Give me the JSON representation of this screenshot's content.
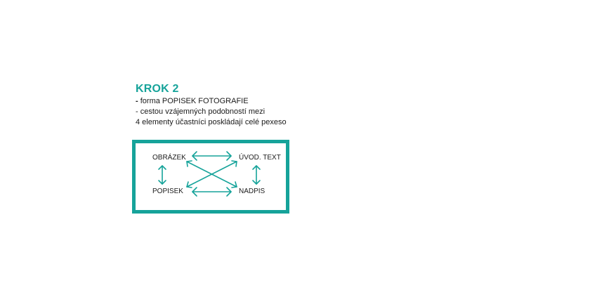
{
  "step": {
    "title": "KROK 2",
    "lines": [
      {
        "dash": "-",
        "text": " forma POPISEK FOTOGRAFIE"
      },
      {
        "dash": "-",
        "text": " cestou vzájemných podobností mezi"
      },
      {
        "dash": "",
        "text": "4 elementy účastníci poskládají celé pexeso"
      }
    ]
  },
  "diagram": {
    "nodes": {
      "top_left": "OBRÁZEK",
      "top_right": "ÚVOD. TEXT",
      "bottom_left": "POPISEK",
      "bottom_right": "NADPIS"
    },
    "colors": {
      "accent": "#16a39a",
      "text": "#1a1a1a"
    }
  }
}
